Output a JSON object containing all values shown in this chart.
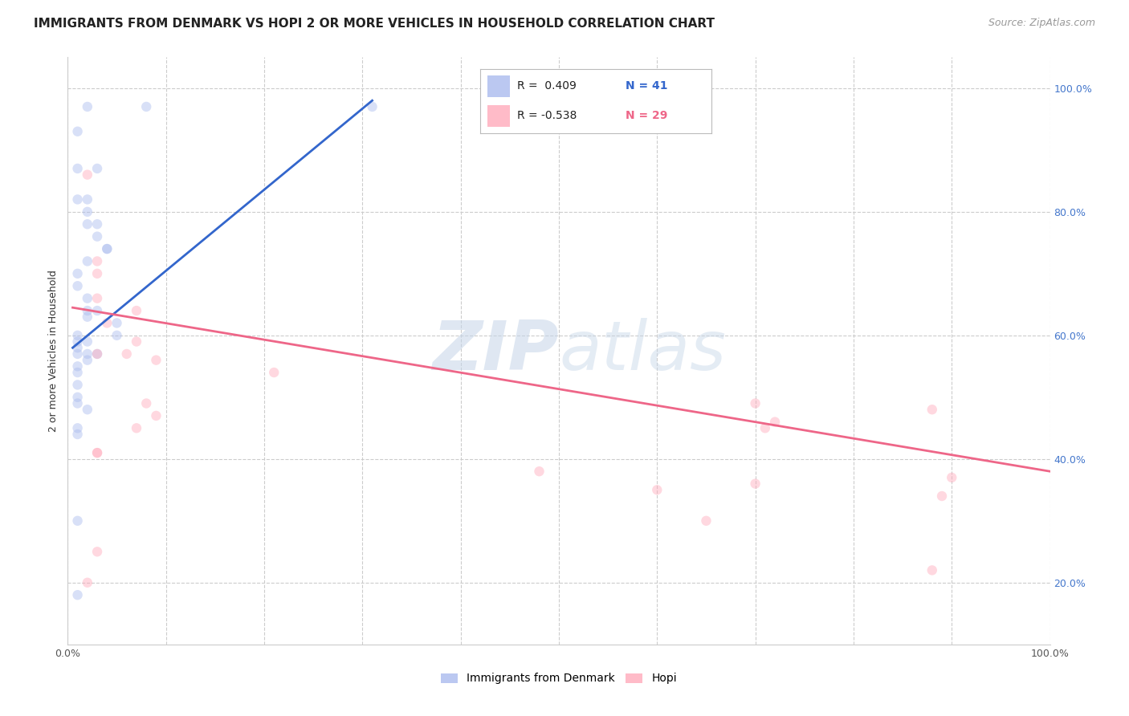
{
  "title": "IMMIGRANTS FROM DENMARK VS HOPI 2 OR MORE VEHICLES IN HOUSEHOLD CORRELATION CHART",
  "source": "Source: ZipAtlas.com",
  "ylabel": "2 or more Vehicles in Household",
  "legend_label_blue": "Immigrants from Denmark",
  "legend_label_pink": "Hopi",
  "legend_blue_r": "R =  0.409",
  "legend_blue_n": "N = 41",
  "legend_pink_r": "R = -0.538",
  "legend_pink_n": "N = 29",
  "blue_scatter_x": [
    0.2,
    0.8,
    0.1,
    0.3,
    0.1,
    0.2,
    0.1,
    0.2,
    0.2,
    0.3,
    0.3,
    0.4,
    0.4,
    0.2,
    0.1,
    0.1,
    0.2,
    0.3,
    0.2,
    0.2,
    0.5,
    0.5,
    0.1,
    0.1,
    0.2,
    0.1,
    0.2,
    0.1,
    0.3,
    0.2,
    0.1,
    0.1,
    0.1,
    3.1,
    0.1,
    0.1,
    0.2,
    0.1,
    0.1,
    0.1,
    0.1
  ],
  "blue_scatter_y": [
    97,
    97,
    93,
    87,
    87,
    82,
    82,
    80,
    78,
    78,
    76,
    74,
    74,
    72,
    70,
    68,
    66,
    64,
    64,
    63,
    62,
    60,
    60,
    59,
    59,
    58,
    57,
    57,
    57,
    56,
    55,
    54,
    52,
    97,
    50,
    49,
    48,
    45,
    44,
    30,
    18
  ],
  "pink_scatter_x": [
    0.3,
    0.2,
    0.3,
    0.3,
    0.7,
    0.4,
    0.3,
    0.3,
    0.9,
    2.1,
    0.9,
    0.8,
    0.7,
    0.7,
    0.3,
    0.2,
    0.3,
    0.6,
    4.8,
    7.0,
    6.0,
    6.5,
    7.2,
    7.1,
    7.0,
    8.8,
    9.0,
    8.9,
    8.8
  ],
  "pink_scatter_y": [
    72,
    86,
    70,
    66,
    64,
    62,
    57,
    41,
    56,
    54,
    47,
    49,
    45,
    59,
    41,
    20,
    25,
    57,
    38,
    36,
    35,
    30,
    46,
    45,
    49,
    48,
    37,
    34,
    22
  ],
  "blue_line_x": [
    0.05,
    3.1
  ],
  "blue_line_y": [
    58,
    98
  ],
  "pink_line_x": [
    0.05,
    10.0
  ],
  "pink_line_y": [
    64.5,
    38.0
  ],
  "xlim": [
    0.0,
    10.0
  ],
  "ylim": [
    10.0,
    105.0
  ],
  "xticks": [
    0.0,
    1.0,
    2.0,
    3.0,
    4.0,
    5.0,
    6.0,
    7.0,
    8.0,
    9.0,
    10.0
  ],
  "yticks": [
    20.0,
    40.0,
    60.0,
    80.0,
    100.0
  ],
  "background_color": "#ffffff",
  "scatter_alpha": 0.45,
  "scatter_size": 80,
  "blue_color": "#aabbee",
  "pink_color": "#ffaabb",
  "blue_line_color": "#3366cc",
  "pink_line_color": "#ee6688",
  "watermark_zip": "ZIP",
  "watermark_atlas": "atlas",
  "watermark_color_zip": "#c5d5e8",
  "watermark_color_atlas": "#c5d5e8",
  "grid_color": "#cccccc",
  "grid_style": "--",
  "title_fontsize": 11,
  "source_fontsize": 9,
  "axis_label_fontsize": 9,
  "legend_fontsize": 11,
  "right_ytick_color": "#4477cc"
}
